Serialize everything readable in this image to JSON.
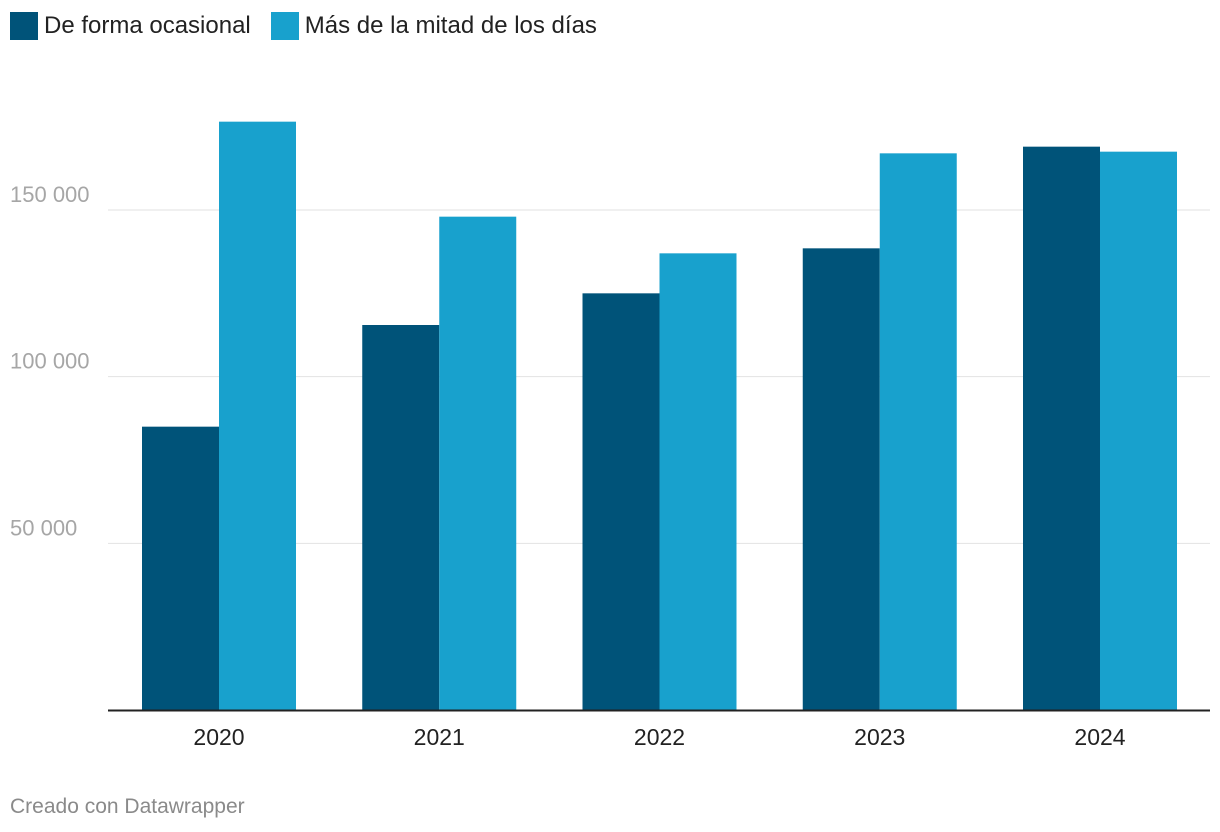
{
  "legend": [
    {
      "label": "De forma ocasional",
      "color": "#005379"
    },
    {
      "label": "Más de la mitad de los días",
      "color": "#18a1cd"
    }
  ],
  "footer": {
    "credit": "Creado con Datawrapper"
  },
  "chart_data": {
    "type": "bar",
    "categories": [
      "2020",
      "2021",
      "2022",
      "2023",
      "2024"
    ],
    "series": [
      {
        "name": "De forma ocasional",
        "color": "#005379",
        "values": [
          85000,
          115500,
          125000,
          138500,
          169000
        ]
      },
      {
        "name": "Más de la mitad de los días",
        "color": "#18a1cd",
        "values": [
          176500,
          148000,
          137000,
          167000,
          167500
        ]
      }
    ],
    "yticks": [
      50000,
      100000,
      150000
    ],
    "ytick_labels": [
      "50 000",
      "100 000",
      "150 000"
    ],
    "ylim": [
      0,
      180000
    ],
    "grid": true,
    "legend_position": "top-left"
  }
}
